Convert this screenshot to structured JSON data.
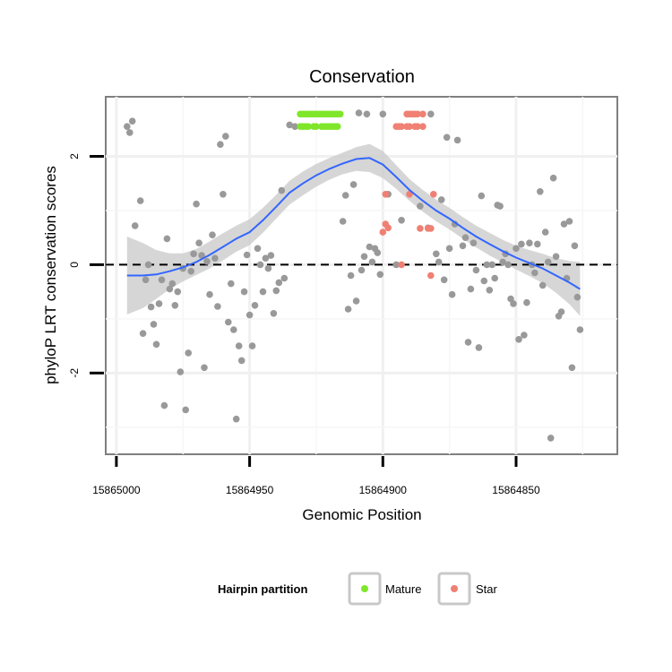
{
  "chart_data": {
    "type": "scatter",
    "title": "Conservation",
    "xlabel": "Genomic Position",
    "ylabel": "phyloP LRT conservation scores",
    "xlim": [
      15865004,
      15864812
    ],
    "ylim": [
      -3.5,
      3.1
    ],
    "x_reversed": true,
    "x_ticks": [
      15865000,
      15864950,
      15864900,
      15864850
    ],
    "x_tick_labels": [
      "15865000",
      "15864950",
      "15864900",
      "15864850"
    ],
    "y_ticks": [
      -2,
      0,
      2
    ],
    "y_tick_labels": [
      "-2",
      "0",
      "2"
    ],
    "reference_line": {
      "y": 0,
      "style": "dashed"
    },
    "legend": {
      "title": "Hairpin partition",
      "position": "bottom",
      "entries": [
        {
          "label": "Mature",
          "color": "#7FE62A"
        },
        {
          "label": "Star",
          "color": "#F08073"
        }
      ]
    },
    "colors": {
      "other": "#999999",
      "Mature": "#7FE62A",
      "Star": "#F08073",
      "smooth": "#3366FF",
      "ribbon": "#CCCCCC"
    },
    "series": [
      {
        "name": "Other",
        "points": [
          [
            15864996,
            2.55
          ],
          [
            15864995,
            2.44
          ],
          [
            15864994,
            2.65
          ],
          [
            15864993,
            0.72
          ],
          [
            15864991,
            1.18
          ],
          [
            15864990,
            -1.27
          ],
          [
            15864989,
            -0.28
          ],
          [
            15864988,
            0.0
          ],
          [
            15864987,
            -0.78
          ],
          [
            15864986,
            -1.1
          ],
          [
            15864985,
            -1.47
          ],
          [
            15864984,
            -0.72
          ],
          [
            15864983,
            -0.28
          ],
          [
            15864982,
            -2.6
          ],
          [
            15864981,
            0.48
          ],
          [
            15864980,
            -0.45
          ],
          [
            15864979,
            -0.35
          ],
          [
            15864978,
            -0.75
          ],
          [
            15864977,
            -0.5
          ],
          [
            15864976,
            -1.98
          ],
          [
            15864975,
            -0.07
          ],
          [
            15864974,
            -2.68
          ],
          [
            15864973,
            -1.63
          ],
          [
            15864972,
            -0.12
          ],
          [
            15864971,
            0.2
          ],
          [
            15864970,
            1.12
          ],
          [
            15864969,
            0.4
          ],
          [
            15864968,
            0.17
          ],
          [
            15864967,
            -1.9
          ],
          [
            15864966,
            0.06
          ],
          [
            15864965,
            -0.55
          ],
          [
            15864964,
            0.55
          ],
          [
            15864963,
            0.12
          ],
          [
            15864962,
            -0.77
          ],
          [
            15864961,
            2.22
          ],
          [
            15864960,
            1.3
          ],
          [
            15864959,
            2.37
          ],
          [
            15864958,
            -1.06
          ],
          [
            15864957,
            -0.35
          ],
          [
            15864956,
            -1.2
          ],
          [
            15864955,
            -2.85
          ],
          [
            15864954,
            -1.5
          ],
          [
            15864953,
            -1.77
          ],
          [
            15864952,
            -0.5
          ],
          [
            15864951,
            0.18
          ],
          [
            15864950,
            -0.93
          ],
          [
            15864949,
            -1.5
          ],
          [
            15864948,
            -0.75
          ],
          [
            15864947,
            0.3
          ],
          [
            15864946,
            0.0
          ],
          [
            15864945,
            -0.5
          ],
          [
            15864944,
            0.12
          ],
          [
            15864943,
            -0.07
          ],
          [
            15864942,
            0.17
          ],
          [
            15864941,
            -0.9
          ],
          [
            15864940,
            -0.48
          ],
          [
            15864939,
            -0.33
          ],
          [
            15864938,
            1.37
          ],
          [
            15864937,
            -0.25
          ],
          [
            15864935,
            2.58
          ],
          [
            15864933,
            2.55
          ],
          [
            15864915,
            0.8
          ],
          [
            15864914,
            1.28
          ],
          [
            15864913,
            -0.82
          ],
          [
            15864912,
            -0.2
          ],
          [
            15864911,
            1.48
          ],
          [
            15864910,
            -0.67
          ],
          [
            15864909,
            2.8
          ],
          [
            15864908,
            -0.1
          ],
          [
            15864907,
            0.15
          ],
          [
            15864906,
            2.78
          ],
          [
            15864905,
            0.33
          ],
          [
            15864904,
            0.05
          ],
          [
            15864903,
            0.3
          ],
          [
            15864902,
            0.22
          ],
          [
            15864901,
            -0.18
          ],
          [
            15864900,
            2.78
          ],
          [
            15864898,
            1.3
          ],
          [
            15864895,
            0.0
          ],
          [
            15864893,
            0.82
          ],
          [
            15864886,
            1.08
          ],
          [
            15864883,
            0.68
          ],
          [
            15864882,
            2.78
          ],
          [
            15864880,
            0.2
          ],
          [
            15864879,
            0.05
          ],
          [
            15864878,
            1.2
          ],
          [
            15864877,
            -0.28
          ],
          [
            15864876,
            2.35
          ],
          [
            15864875,
            0.3
          ],
          [
            15864874,
            -0.55
          ],
          [
            15864873,
            0.75
          ],
          [
            15864872,
            2.3
          ],
          [
            15864870,
            0.35
          ],
          [
            15864869,
            0.5
          ],
          [
            15864868,
            -1.43
          ],
          [
            15864867,
            -0.45
          ],
          [
            15864866,
            0.4
          ],
          [
            15864865,
            -0.1
          ],
          [
            15864864,
            -1.53
          ],
          [
            15864863,
            1.27
          ],
          [
            15864862,
            -0.3
          ],
          [
            15864861,
            0.0
          ],
          [
            15864860,
            -0.47
          ],
          [
            15864859,
            0.0
          ],
          [
            15864858,
            -0.25
          ],
          [
            15864857,
            1.1
          ],
          [
            15864856,
            1.08
          ],
          [
            15864855,
            0.05
          ],
          [
            15864854,
            0.2
          ],
          [
            15864853,
            0.0
          ],
          [
            15864852,
            -0.63
          ],
          [
            15864851,
            -0.72
          ],
          [
            15864850,
            0.3
          ],
          [
            15864849,
            -1.38
          ],
          [
            15864848,
            0.38
          ],
          [
            15864847,
            -1.3
          ],
          [
            15864846,
            -0.7
          ],
          [
            15864845,
            0.4
          ],
          [
            15864844,
            0.0
          ],
          [
            15864843,
            -0.15
          ],
          [
            15864842,
            0.38
          ],
          [
            15864841,
            1.35
          ],
          [
            15864840,
            -0.38
          ],
          [
            15864839,
            0.6
          ],
          [
            15864838,
            0.05
          ],
          [
            15864837,
            -3.2
          ],
          [
            15864836,
            1.6
          ],
          [
            15864835,
            0.15
          ],
          [
            15864834,
            -0.95
          ],
          [
            15864833,
            -0.87
          ],
          [
            15864832,
            0.75
          ],
          [
            15864831,
            -0.25
          ],
          [
            15864830,
            0.8
          ],
          [
            15864829,
            -1.9
          ],
          [
            15864828,
            0.35
          ],
          [
            15864827,
            -0.6
          ],
          [
            15864826,
            -1.2
          ]
        ]
      },
      {
        "name": "Mature",
        "points": [
          [
            15864931,
            2.78
          ],
          [
            15864930,
            2.78
          ],
          [
            15864929,
            2.78
          ],
          [
            15864928,
            2.78
          ],
          [
            15864927,
            2.78
          ],
          [
            15864926,
            2.78
          ],
          [
            15864925,
            2.78
          ],
          [
            15864924,
            2.78
          ],
          [
            15864923,
            2.78
          ],
          [
            15864922,
            2.78
          ],
          [
            15864921,
            2.78
          ],
          [
            15864920,
            2.78
          ],
          [
            15864919,
            2.78
          ],
          [
            15864918,
            2.78
          ],
          [
            15864917,
            2.78
          ],
          [
            15864916,
            2.78
          ],
          [
            15864931,
            2.55
          ],
          [
            15864930,
            2.55
          ],
          [
            15864929,
            2.55
          ],
          [
            15864928,
            2.55
          ],
          [
            15864926,
            2.55
          ],
          [
            15864925,
            2.55
          ],
          [
            15864923,
            2.55
          ],
          [
            15864922,
            2.55
          ],
          [
            15864921,
            2.55
          ],
          [
            15864920,
            2.55
          ],
          [
            15864919,
            2.55
          ],
          [
            15864918,
            2.55
          ],
          [
            15864917,
            2.55
          ]
        ]
      },
      {
        "name": "Star",
        "points": [
          [
            15864891,
            2.78
          ],
          [
            15864890,
            2.78
          ],
          [
            15864889,
            2.78
          ],
          [
            15864888,
            2.78
          ],
          [
            15864887,
            2.78
          ],
          [
            15864885,
            2.78
          ],
          [
            15864895,
            2.55
          ],
          [
            15864894,
            2.55
          ],
          [
            15864893,
            2.55
          ],
          [
            15864891,
            2.55
          ],
          [
            15864890,
            2.55
          ],
          [
            15864888,
            2.55
          ],
          [
            15864887,
            2.55
          ],
          [
            15864885,
            2.55
          ],
          [
            15864899,
            1.3
          ],
          [
            15864890,
            1.3
          ],
          [
            15864881,
            1.3
          ],
          [
            15864899,
            0.75
          ],
          [
            15864898,
            0.68
          ],
          [
            15864900,
            0.6
          ],
          [
            15864886,
            0.67
          ],
          [
            15864883,
            0.67
          ],
          [
            15864882,
            0.67
          ],
          [
            15864893,
            0.0
          ],
          [
            15864882,
            -0.2
          ]
        ]
      }
    ],
    "smooth": {
      "method": "loess",
      "x": [
        15864996,
        15864990,
        15864985,
        15864980,
        15864975,
        15864970,
        15864965,
        15864960,
        15864955,
        15864950,
        15864945,
        15864940,
        15864935,
        15864930,
        15864925,
        15864920,
        15864915,
        15864910,
        15864905,
        15864900,
        15864895,
        15864890,
        15864885,
        15864880,
        15864875,
        15864870,
        15864865,
        15864860,
        15864855,
        15864850,
        15864845,
        15864840,
        15864835,
        15864830,
        15864826
      ],
      "y": [
        -0.2,
        -0.2,
        -0.18,
        -0.12,
        -0.05,
        0.05,
        0.18,
        0.33,
        0.48,
        0.6,
        0.82,
        1.07,
        1.33,
        1.5,
        1.65,
        1.77,
        1.87,
        1.95,
        1.97,
        1.85,
        1.62,
        1.38,
        1.18,
        1.0,
        0.85,
        0.68,
        0.52,
        0.38,
        0.25,
        0.13,
        0.03,
        -0.07,
        -0.2,
        -0.33,
        -0.45
      ],
      "se_band": [
        0.72,
        0.6,
        0.45,
        0.33,
        0.26,
        0.24,
        0.25,
        0.25,
        0.24,
        0.24,
        0.23,
        0.22,
        0.22,
        0.22,
        0.21,
        0.2,
        0.2,
        0.22,
        0.26,
        0.25,
        0.22,
        0.2,
        0.2,
        0.2,
        0.2,
        0.2,
        0.2,
        0.21,
        0.21,
        0.22,
        0.24,
        0.27,
        0.32,
        0.4,
        0.5
      ]
    }
  }
}
